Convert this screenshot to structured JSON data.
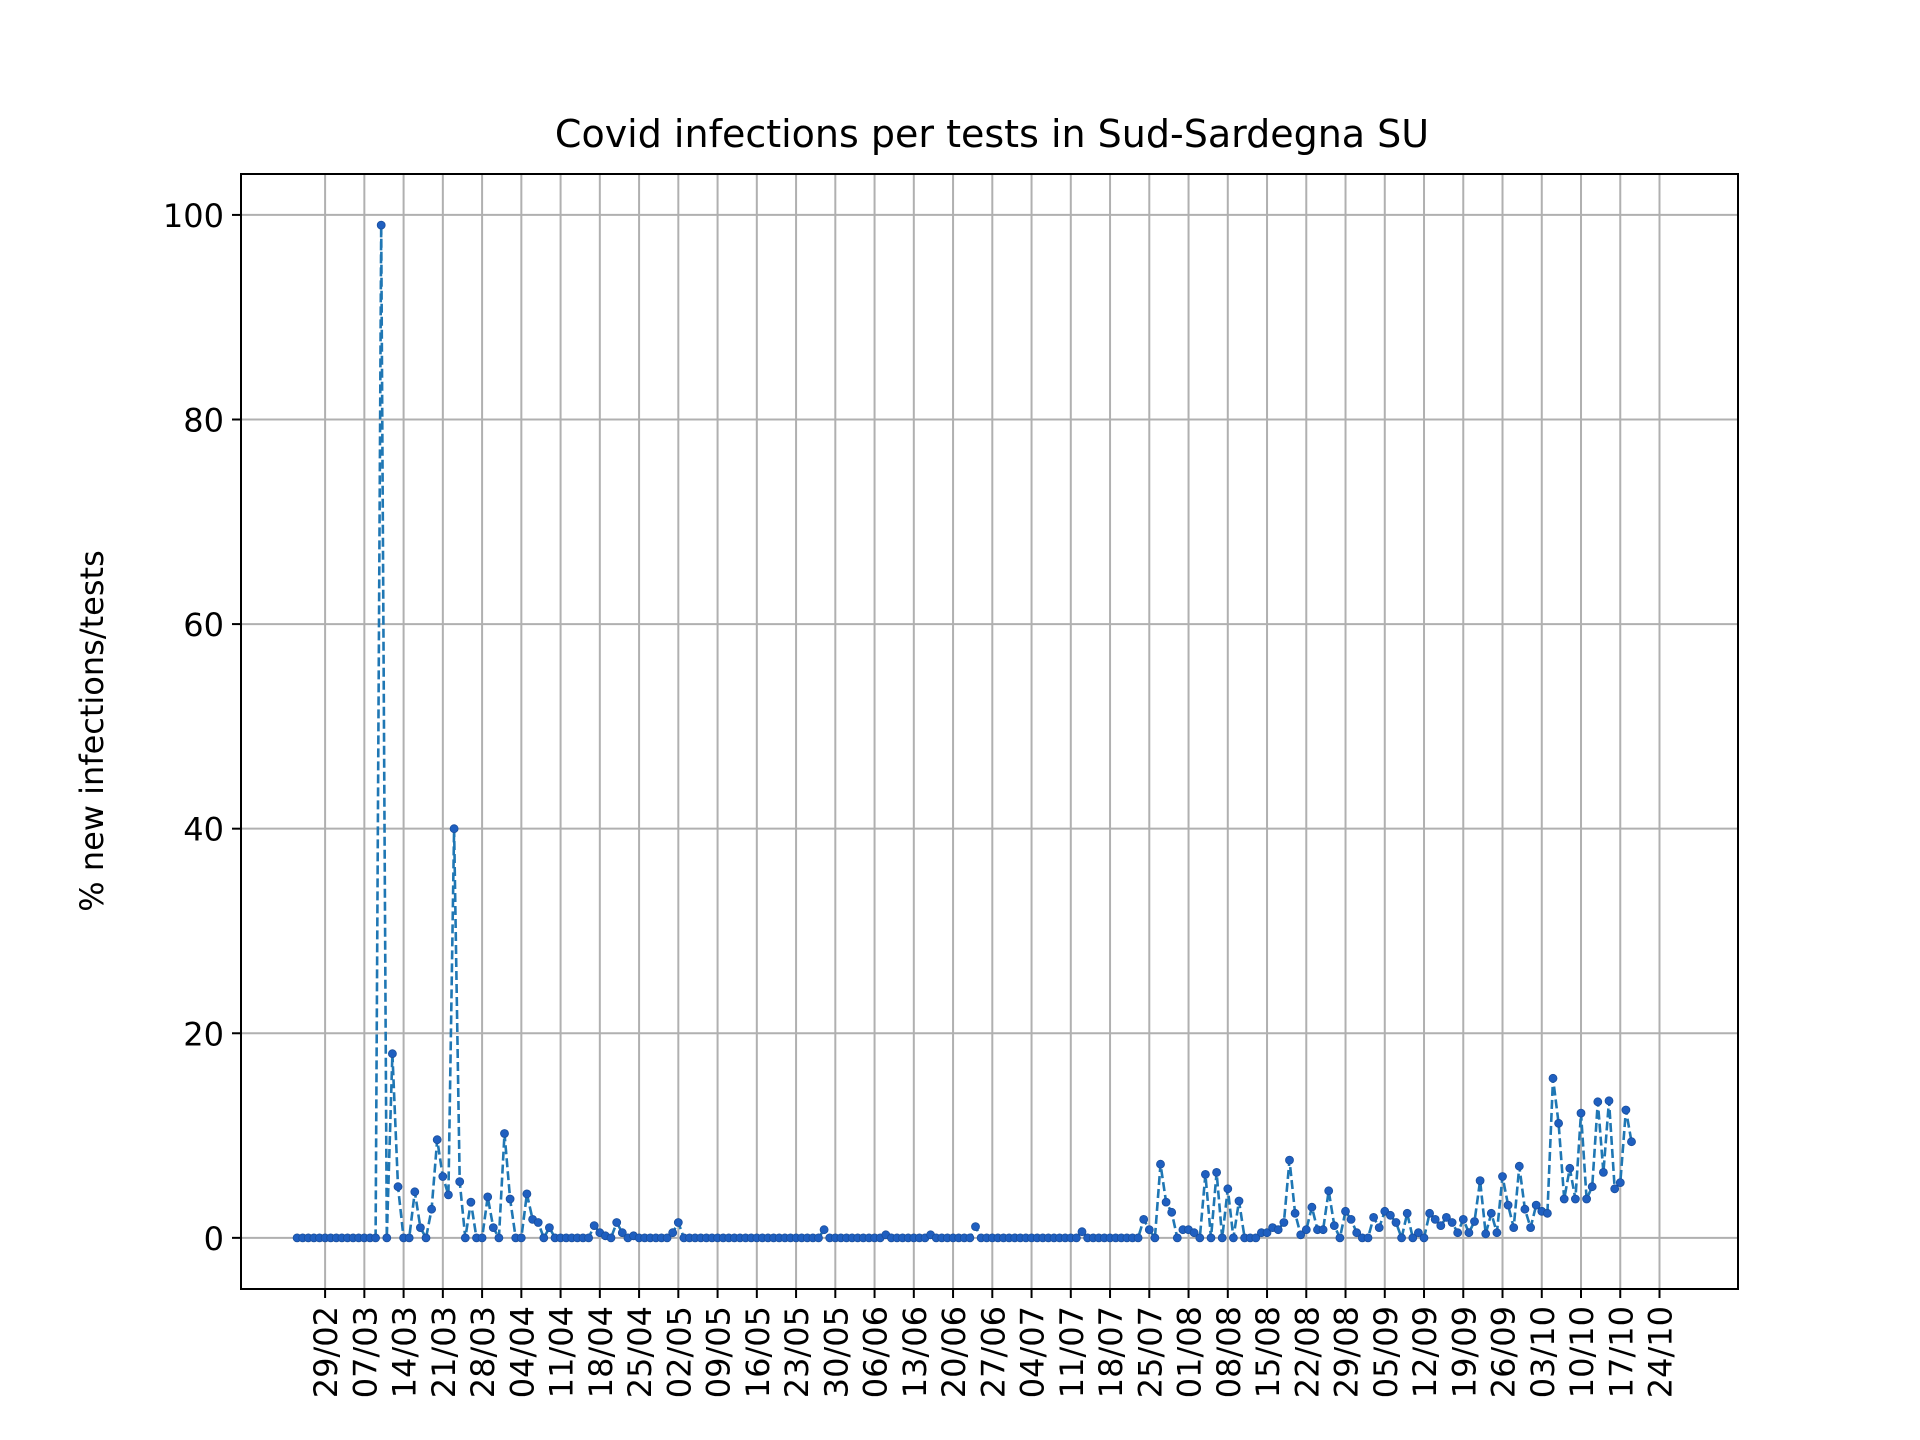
{
  "chart_data": {
    "type": "line",
    "title": "Covid infections per tests in Sud-Sardegna SU",
    "xlabel": "",
    "ylabel": "% new infections/tests",
    "x_start_date": "2020-02-24",
    "xlim": [
      "2020-02-14",
      "2020-11-07"
    ],
    "ylim": [
      -5,
      104
    ],
    "grid": true,
    "line_style": "dashed",
    "marker": "dot",
    "colors": {
      "line": "#1f77b4",
      "marker": "#1f5fc0",
      "grid": "#b0b0b0"
    },
    "y_ticks": [
      0,
      20,
      40,
      60,
      80,
      100
    ],
    "x_tick_labels": [
      {
        "date": "2020-02-29",
        "label": "29/02"
      },
      {
        "date": "2020-03-07",
        "label": "07/03"
      },
      {
        "date": "2020-03-14",
        "label": "14/03"
      },
      {
        "date": "2020-03-21",
        "label": "21/03"
      },
      {
        "date": "2020-03-28",
        "label": "28/03"
      },
      {
        "date": "2020-04-04",
        "label": "04/04"
      },
      {
        "date": "2020-04-11",
        "label": "11/04"
      },
      {
        "date": "2020-04-18",
        "label": "18/04"
      },
      {
        "date": "2020-04-25",
        "label": "25/04"
      },
      {
        "date": "2020-05-02",
        "label": "02/05"
      },
      {
        "date": "2020-05-09",
        "label": "09/05"
      },
      {
        "date": "2020-05-16",
        "label": "16/05"
      },
      {
        "date": "2020-05-23",
        "label": "23/05"
      },
      {
        "date": "2020-05-30",
        "label": "30/05"
      },
      {
        "date": "2020-06-06",
        "label": "06/06"
      },
      {
        "date": "2020-06-13",
        "label": "13/06"
      },
      {
        "date": "2020-06-20",
        "label": "20/06"
      },
      {
        "date": "2020-06-27",
        "label": "27/06"
      },
      {
        "date": "2020-07-04",
        "label": "04/07"
      },
      {
        "date": "2020-07-11",
        "label": "11/07"
      },
      {
        "date": "2020-07-18",
        "label": "18/07"
      },
      {
        "date": "2020-07-25",
        "label": "25/07"
      },
      {
        "date": "2020-08-01",
        "label": "01/08"
      },
      {
        "date": "2020-08-08",
        "label": "08/08"
      },
      {
        "date": "2020-08-15",
        "label": "15/08"
      },
      {
        "date": "2020-08-22",
        "label": "22/08"
      },
      {
        "date": "2020-08-29",
        "label": "29/08"
      },
      {
        "date": "2020-09-05",
        "label": "05/09"
      },
      {
        "date": "2020-09-12",
        "label": "12/09"
      },
      {
        "date": "2020-09-19",
        "label": "19/09"
      },
      {
        "date": "2020-09-26",
        "label": "26/09"
      },
      {
        "date": "2020-10-03",
        "label": "03/10"
      },
      {
        "date": "2020-10-10",
        "label": "10/10"
      },
      {
        "date": "2020-10-17",
        "label": "17/10"
      },
      {
        "date": "2020-10-24",
        "label": "24/10"
      }
    ],
    "series": [
      {
        "values": [
          0,
          0,
          0,
          0,
          0,
          0,
          0,
          0,
          0,
          0,
          0,
          0,
          0,
          0,
          0,
          99,
          0,
          18,
          5,
          0,
          0,
          4.5,
          1,
          0,
          2.8,
          9.6,
          6,
          4.2,
          40,
          5.5,
          0,
          3.5,
          0,
          0,
          4,
          1,
          0,
          10.2,
          3.8,
          0,
          0,
          4.3,
          1.8,
          1.5,
          0,
          1,
          0,
          0,
          0,
          0,
          0,
          0,
          0,
          1.2,
          0.5,
          0.2,
          0,
          1.5,
          0.5,
          0,
          0.2,
          0,
          0,
          0,
          0,
          0,
          0,
          0.5,
          1.5,
          0,
          0,
          0,
          0,
          0,
          0,
          0,
          0,
          0,
          0,
          0,
          0,
          0,
          0,
          0,
          0,
          0,
          0,
          0,
          0,
          0,
          0,
          0,
          0,
          0,
          0.8,
          0,
          0,
          0,
          0,
          0,
          0,
          0,
          0,
          0,
          0,
          0.3,
          0,
          0,
          0,
          0,
          0,
          0,
          0,
          0.3,
          0,
          0,
          0,
          0,
          0,
          0,
          0,
          1.1,
          0,
          0,
          0,
          0,
          0,
          0,
          0,
          0,
          0,
          0,
          0,
          0,
          0,
          0,
          0,
          0,
          0,
          0,
          0.6,
          0,
          0,
          0,
          0,
          0,
          0,
          0,
          0,
          0,
          0,
          1.8,
          0.8,
          0,
          7.2,
          3.5,
          2.5,
          0,
          0.8,
          0.8,
          0.5,
          0,
          6.2,
          0,
          6.4,
          0,
          4.8,
          0,
          3.6,
          0,
          0,
          0,
          0.5,
          0.5,
          1,
          0.8,
          1.5,
          7.6,
          2.4,
          0.3,
          0.8,
          3,
          0.8,
          0.8,
          4.6,
          1.2,
          0,
          2.6,
          1.8,
          0.5,
          0,
          0,
          2,
          1,
          2.6,
          2.2,
          1.5,
          0,
          2.4,
          0,
          0.5,
          0,
          2.4,
          1.8,
          1.2,
          2,
          1.5,
          0.5,
          1.8,
          0.5,
          1.6,
          5.6,
          0.4,
          2.4,
          0.5,
          6,
          3.2,
          1,
          7,
          2.8,
          1,
          3.2,
          2.6,
          2.4,
          15.6,
          11.2,
          3.8,
          6.8,
          3.8,
          12.2,
          3.8,
          5,
          13.3,
          6.4,
          13.4,
          4.8,
          5.4,
          12.5,
          9.4
        ]
      }
    ]
  }
}
